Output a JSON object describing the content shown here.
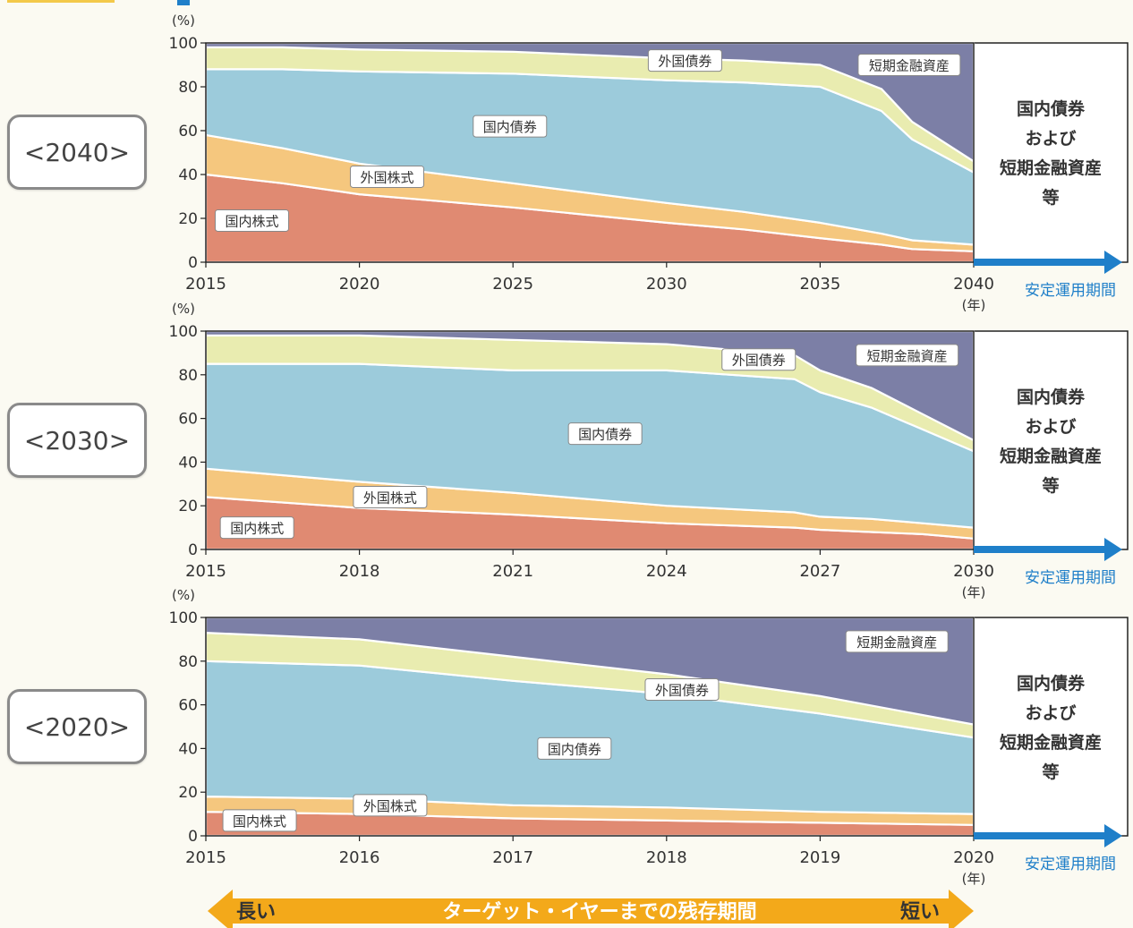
{
  "colors": {
    "domestic_stocks": "#e08a72",
    "foreign_stocks": "#f5c77e",
    "domestic_bonds": "#9ccbdb",
    "foreign_bonds": "#e9ecb0",
    "short_term": "#7c7fa6",
    "arrow_blue": "#1f7fc9",
    "arrow_orange": "#f3a91a",
    "grid": "#ffffff"
  },
  "legend_labels": {
    "domestic_stocks": "国内株式",
    "foreign_stocks": "外国株式",
    "domestic_bonds": "国内債券",
    "foreign_bonds": "外国債券",
    "short_term": "短期金融資産"
  },
  "right_box_lines": [
    "国内債券",
    "および",
    "短期金融資産",
    "等"
  ],
  "stable_period_label": "安定運用期間",
  "y_unit_label": "(%)",
  "x_unit_label": "(年)",
  "bottom_arrow": {
    "left_label": "長い",
    "center_label": "ターゲット・イヤーまでの残存期間",
    "right_label": "短い"
  },
  "chart_data": [
    {
      "type": "area",
      "name": "<2040>",
      "ylim": [
        0,
        100
      ],
      "yticks": [
        0,
        20,
        40,
        60,
        80,
        100
      ],
      "xlim": [
        2015,
        2040
      ],
      "xticks": [
        "2015",
        "2020",
        "2025",
        "2030",
        "2035",
        "2040"
      ],
      "x": [
        2015,
        2017.5,
        2020,
        2025,
        2030,
        2032.5,
        2035,
        2037,
        2038,
        2040
      ],
      "series": [
        {
          "name": "国内株式",
          "values": [
            40,
            36,
            31,
            25,
            18,
            15,
            11,
            8,
            6,
            5
          ]
        },
        {
          "name": "外国株式",
          "values": [
            18,
            16,
            14,
            11,
            9,
            8,
            7,
            5,
            4,
            3
          ]
        },
        {
          "name": "国内債券",
          "values": [
            30,
            36,
            42,
            50,
            56,
            59,
            62,
            56,
            46,
            33
          ]
        },
        {
          "name": "外国債券",
          "values": [
            10,
            10,
            10,
            10,
            10,
            10,
            10,
            10,
            8,
            5
          ]
        },
        {
          "name": "短期金融資産",
          "values": [
            2,
            2,
            3,
            4,
            7,
            8,
            10,
            21,
            36,
            54
          ]
        }
      ],
      "label_positions": {
        "domestic_stocks": [
          2016.5,
          19
        ],
        "foreign_stocks": [
          2020.9,
          39
        ],
        "domestic_bonds": [
          2024.9,
          62
        ],
        "foreign_bonds": [
          2030.6,
          92
        ],
        "short_term": [
          2037.9,
          90
        ]
      }
    },
    {
      "type": "area",
      "name": "<2030>",
      "ylim": [
        0,
        100
      ],
      "yticks": [
        0,
        20,
        40,
        60,
        80,
        100
      ],
      "xlim": [
        2015,
        2030
      ],
      "xticks": [
        "2015",
        "2018",
        "2021",
        "2024",
        "2027",
        "2030"
      ],
      "x": [
        2015,
        2018,
        2021,
        2024,
        2026.5,
        2027,
        2028,
        2029,
        2030
      ],
      "series": [
        {
          "name": "国内株式",
          "values": [
            24,
            19,
            16,
            12,
            10,
            9,
            8,
            7,
            5
          ]
        },
        {
          "name": "外国株式",
          "values": [
            13,
            12,
            10,
            8,
            7,
            6,
            6,
            5,
            5
          ]
        },
        {
          "name": "国内債券",
          "values": [
            48,
            54,
            56,
            62,
            61,
            57,
            51,
            43,
            35
          ]
        },
        {
          "name": "外国債券",
          "values": [
            13,
            13,
            14,
            12,
            11,
            10,
            9,
            7,
            5
          ]
        },
        {
          "name": "短期金融資産",
          "values": [
            2,
            2,
            4,
            6,
            11,
            18,
            26,
            38,
            50
          ]
        }
      ],
      "label_positions": {
        "domestic_stocks": [
          2016,
          10
        ],
        "foreign_stocks": [
          2018.6,
          24
        ],
        "domestic_bonds": [
          2022.8,
          53
        ],
        "foreign_bonds": [
          2025.8,
          87
        ],
        "short_term": [
          2028.7,
          89
        ]
      }
    },
    {
      "type": "area",
      "name": "<2020>",
      "ylim": [
        0,
        100
      ],
      "yticks": [
        0,
        20,
        40,
        60,
        80,
        100
      ],
      "xlim": [
        2015,
        2020
      ],
      "xticks": [
        "2015",
        "2016",
        "2017",
        "2018",
        "2019",
        "2020"
      ],
      "x": [
        2015,
        2016,
        2017,
        2018,
        2019,
        2020
      ],
      "series": [
        {
          "name": "国内株式",
          "values": [
            11,
            10,
            8,
            7,
            6,
            5
          ]
        },
        {
          "name": "外国株式",
          "values": [
            7,
            7,
            6,
            6,
            5,
            5
          ]
        },
        {
          "name": "国内債券",
          "values": [
            62,
            61,
            57,
            52,
            45,
            35
          ]
        },
        {
          "name": "外国債券",
          "values": [
            13,
            12,
            11,
            9,
            8,
            6
          ]
        },
        {
          "name": "短期金融資産",
          "values": [
            7,
            10,
            18,
            26,
            36,
            49
          ]
        }
      ],
      "label_positions": {
        "domestic_stocks": [
          2015.35,
          7
        ],
        "foreign_stocks": [
          2016.2,
          14
        ],
        "domestic_bonds": [
          2017.4,
          40
        ],
        "foreign_bonds": [
          2018.1,
          67
        ],
        "short_term": [
          2019.5,
          89
        ]
      }
    }
  ]
}
